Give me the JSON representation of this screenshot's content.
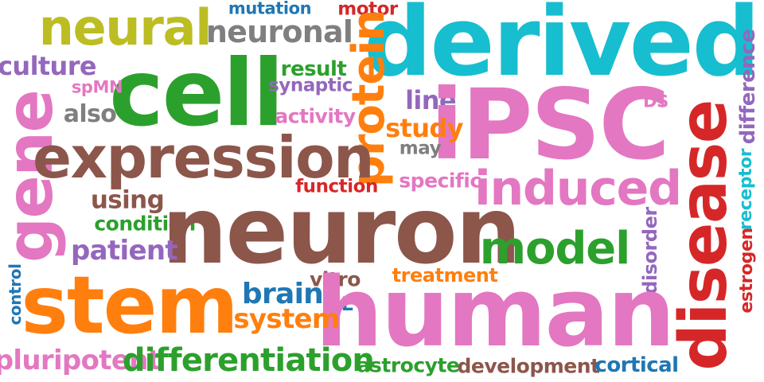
{
  "colors": {
    "purple": "#9467bd",
    "olive": "#bcbd22",
    "blue": "#1f77b4",
    "red": "#d62728",
    "gray": "#7f7f7f",
    "cyan": "#17becf",
    "pink": "#e377c2",
    "green": "#2ca02c",
    "orange": "#ff7f0e",
    "brown": "#8c564b"
  },
  "words": [
    {
      "text": "neural",
      "color": "olive"
    },
    {
      "text": "mutation",
      "color": "blue"
    },
    {
      "text": "motor",
      "color": "red"
    },
    {
      "text": "neuronal",
      "color": "gray"
    },
    {
      "text": "derived",
      "color": "cyan"
    },
    {
      "text": "difference",
      "color": "purple"
    },
    {
      "text": "culture",
      "color": "purple"
    },
    {
      "text": "result",
      "color": "green"
    },
    {
      "text": "protein",
      "color": "orange"
    },
    {
      "text": "cell",
      "color": "green"
    },
    {
      "text": "spMN",
      "color": "pink"
    },
    {
      "text": "synaptic",
      "color": "purple"
    },
    {
      "text": "line",
      "color": "purple"
    },
    {
      "text": "iPSC",
      "color": "pink"
    },
    {
      "text": "DS",
      "color": "pink"
    },
    {
      "text": "gene",
      "color": "pink"
    },
    {
      "text": "also",
      "color": "gray"
    },
    {
      "text": "activity",
      "color": "pink"
    },
    {
      "text": "study",
      "color": "orange"
    },
    {
      "text": "disease",
      "color": "red"
    },
    {
      "text": "expression",
      "color": "brown"
    },
    {
      "text": "may",
      "color": "gray"
    },
    {
      "text": "receptor",
      "color": "cyan"
    },
    {
      "text": "specific",
      "color": "pink"
    },
    {
      "text": "function",
      "color": "red"
    },
    {
      "text": "induced",
      "color": "pink"
    },
    {
      "text": "using",
      "color": "brown"
    },
    {
      "text": "estrogen",
      "color": "red"
    },
    {
      "text": "condition",
      "color": "green"
    },
    {
      "text": "neuron",
      "color": "brown"
    },
    {
      "text": "disorder",
      "color": "purple"
    },
    {
      "text": "model",
      "color": "green"
    },
    {
      "text": "patient",
      "color": "purple"
    },
    {
      "text": "treatment",
      "color": "orange"
    },
    {
      "text": "control",
      "color": "blue"
    },
    {
      "text": "vitro",
      "color": "brown"
    },
    {
      "text": "stem",
      "color": "orange"
    },
    {
      "text": "brain",
      "color": "blue"
    },
    {
      "text": "AL",
      "color": "blue"
    },
    {
      "text": "human",
      "color": "pink"
    },
    {
      "text": "system",
      "color": "orange"
    },
    {
      "text": "pluripotent",
      "color": "pink"
    },
    {
      "text": "differentiation",
      "color": "green"
    },
    {
      "text": "astrocyte",
      "color": "green"
    },
    {
      "text": "development",
      "color": "brown"
    },
    {
      "text": "cortical",
      "color": "blue"
    }
  ]
}
